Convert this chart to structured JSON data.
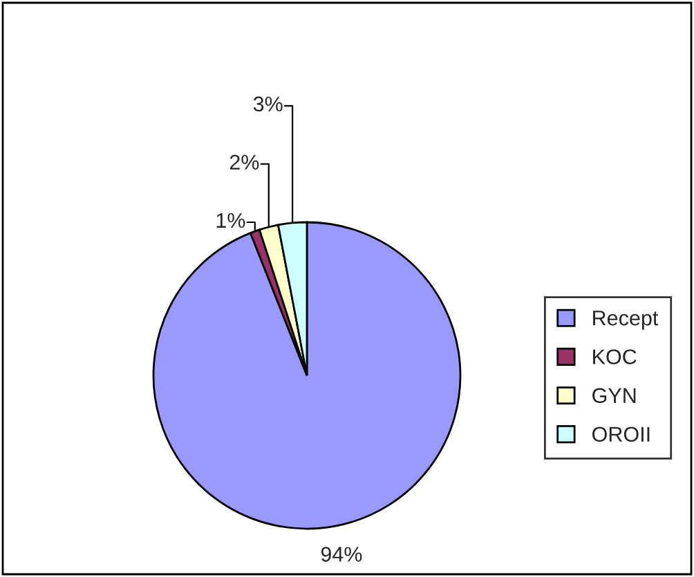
{
  "chart_data": {
    "type": "pie",
    "categories": [
      "Recept",
      "KOC",
      "GYN",
      "OROII"
    ],
    "values": [
      94,
      1,
      2,
      3
    ],
    "colors": [
      "#9999ff",
      "#993366",
      "#ffffcc",
      "#ccffff"
    ],
    "value_labels": [
      "94%",
      "1%",
      "2%",
      "3%"
    ],
    "legend": "right"
  }
}
